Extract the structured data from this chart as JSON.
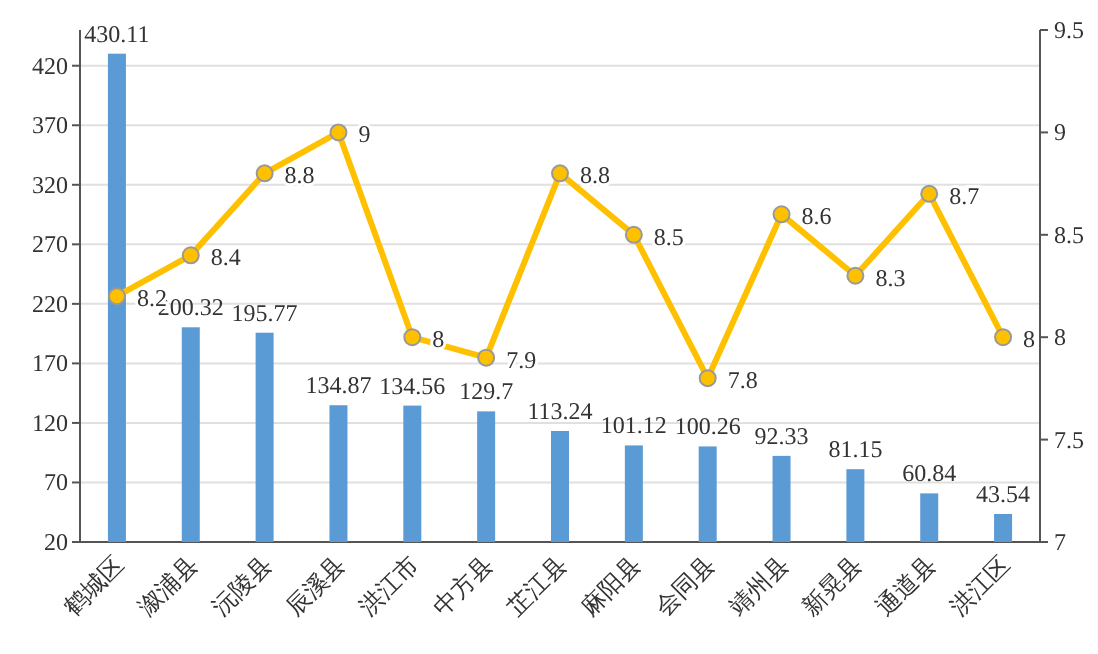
{
  "chart_data": {
    "type": "bar",
    "categories": [
      "鹤城区",
      "溆浦县",
      "沅陵县",
      "辰溪县",
      "洪江市",
      "中方县",
      "芷江县",
      "麻阳县",
      "会同县",
      "靖州县",
      "新晃县",
      "通道县",
      "洪江区"
    ],
    "series": [
      {
        "color": "#5b9bd5",
        "values": [
          430.11,
          200.32,
          195.77,
          134.87,
          134.56,
          129.7,
          113.24,
          101.12,
          100.26,
          92.33,
          81.15,
          60.84,
          43.54
        ]
      },
      {
        "type": "line",
        "axis": "y2",
        "color": "#ffc000",
        "marker": "circle",
        "values": [
          8.2,
          8.4,
          8.8,
          9,
          8,
          7.9,
          8.8,
          8.5,
          7.8,
          8.6,
          8.3,
          8.7,
          8
        ]
      }
    ],
    "ylim": [
      20,
      450
    ],
    "yticks": [
      20,
      70,
      120,
      170,
      220,
      270,
      320,
      370,
      420
    ],
    "y2lim": [
      7,
      9.5
    ],
    "y2ticks": [
      7,
      7.5,
      8,
      8.5,
      9,
      9.5
    ],
    "grid": "y",
    "data_labels": true
  }
}
